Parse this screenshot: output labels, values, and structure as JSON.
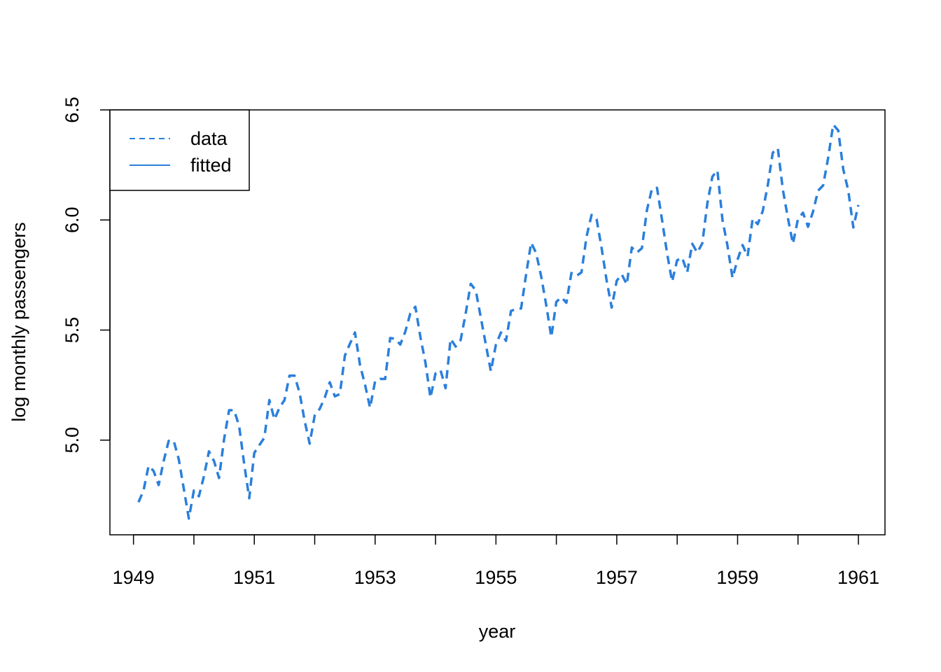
{
  "chart_data": {
    "type": "line",
    "title": "",
    "xlabel": "year",
    "ylabel": "log monthly passengers",
    "xlim": [
      1948.61,
      1961.44
    ],
    "ylim": [
      4.57,
      6.5
    ],
    "x_ticks": [
      1949,
      1950,
      1951,
      1952,
      1953,
      1954,
      1955,
      1956,
      1957,
      1958,
      1959,
      1960,
      1961
    ],
    "x_tick_labels": [
      "1949",
      "",
      "1951",
      "",
      "1953",
      "",
      "1955",
      "",
      "1957",
      "",
      "1959",
      "",
      "1961"
    ],
    "y_ticks": [
      5.0,
      5.5,
      6.0,
      6.5
    ],
    "y_tick_labels": [
      "5.0",
      "5.5",
      "6.0",
      "6.5"
    ],
    "legend": {
      "position": "top-left",
      "entries": [
        {
          "label": "data",
          "style": "dashed"
        },
        {
          "label": "fitted",
          "style": "solid"
        }
      ]
    },
    "series": [
      {
        "name": "data",
        "color": "#2A7FDB",
        "style": "dashed",
        "start_year": 1949.083,
        "step": 0.08333,
        "values": [
          4.718,
          4.771,
          4.883,
          4.86,
          4.796,
          4.905,
          4.997,
          4.997,
          4.913,
          4.779,
          4.644,
          4.771,
          4.745,
          4.836,
          4.949,
          4.905,
          4.828,
          5.004,
          5.136,
          5.136,
          5.063,
          4.891,
          4.736,
          4.942,
          4.977,
          5.011,
          5.182,
          5.094,
          5.147,
          5.182,
          5.293,
          5.293,
          5.215,
          5.088,
          4.984,
          5.112,
          5.142,
          5.193,
          5.263,
          5.199,
          5.209,
          5.384,
          5.438,
          5.489,
          5.342,
          5.252,
          5.147,
          5.268,
          5.278,
          5.278,
          5.464,
          5.46,
          5.434,
          5.493,
          5.576,
          5.606,
          5.468,
          5.352,
          5.193,
          5.303,
          5.318,
          5.236,
          5.46,
          5.425,
          5.455,
          5.576,
          5.71,
          5.68,
          5.557,
          5.434,
          5.313,
          5.434,
          5.489,
          5.451,
          5.587,
          5.595,
          5.598,
          5.753,
          5.897,
          5.849,
          5.743,
          5.613,
          5.468,
          5.628,
          5.649,
          5.624,
          5.759,
          5.746,
          5.762,
          5.924,
          6.023,
          6.004,
          5.872,
          5.724,
          5.602,
          5.724,
          5.753,
          5.707,
          5.875,
          5.852,
          5.872,
          6.045,
          6.142,
          6.146,
          6.001,
          5.849,
          5.72,
          5.817,
          5.829,
          5.762,
          5.892,
          5.852,
          5.894,
          6.075,
          6.197,
          6.225,
          6.001,
          5.883,
          5.737,
          5.82,
          5.886,
          5.835,
          6.006,
          5.981,
          6.04,
          6.157,
          6.306,
          6.326,
          6.138,
          6.009,
          5.892,
          6.004,
          6.033,
          5.969,
          6.038,
          6.133,
          6.157,
          6.282,
          6.433,
          6.407,
          6.23,
          6.133,
          5.966,
          6.068
        ]
      },
      {
        "name": "fitted",
        "color": "#2A7FDB",
        "style": "solid",
        "values": []
      }
    ]
  }
}
